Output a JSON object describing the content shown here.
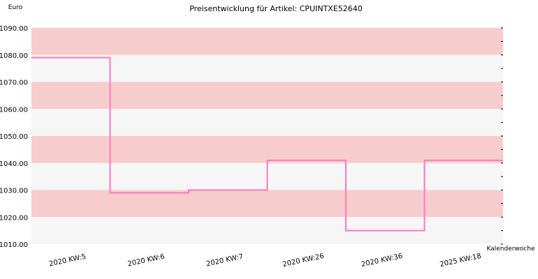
{
  "chart_data": {
    "type": "line",
    "step": true,
    "title": "Preisentwicklung für Artikel: CPUINTXE52640",
    "ylabel": "Euro",
    "xlabel": "Kalenderwoche",
    "ylim": [
      1010,
      1090
    ],
    "yticks": [
      "1010.00",
      "1020.00",
      "1030.00",
      "1040.00",
      "1050.00",
      "1060.00",
      "1070.00",
      "1080.00",
      "1090.00"
    ],
    "categories": [
      "2020 KW:5",
      "2020 KW:6",
      "2020 KW:7",
      "2020 KW:26",
      "2020 KW:36",
      "2025 KW:18"
    ],
    "series": [
      {
        "values": [
          1079,
          1029,
          1030,
          1041,
          1015,
          1041
        ]
      }
    ],
    "grid": true,
    "band_colors": [
      "#f7cccc",
      "#f6f6f6"
    ],
    "line_color": "#ff77bb"
  }
}
